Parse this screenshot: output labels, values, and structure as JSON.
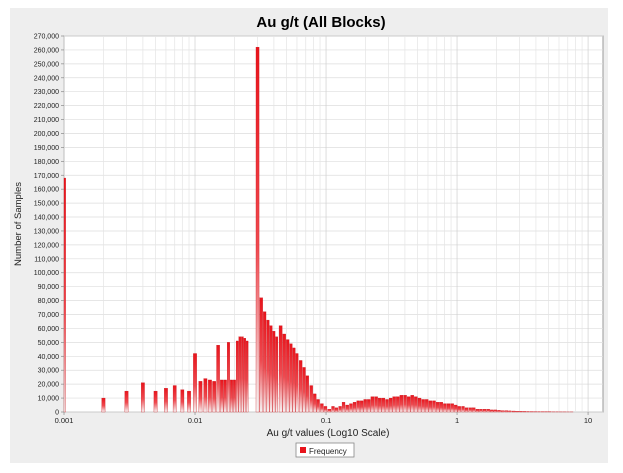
{
  "chart_data": {
    "type": "bar",
    "title": "Au g/t  (All Blocks)",
    "xlabel": "Au g/t values (Log10 Scale)",
    "ylabel": "Number of Samples",
    "x_scale": "log10",
    "xlim": [
      0.001,
      13
    ],
    "ylim": [
      0,
      270000
    ],
    "grid": true,
    "legend_position": "bottom-center",
    "x_ticks": [
      {
        "value": 0.001,
        "label": "0.001"
      },
      {
        "value": 0.01,
        "label": "0.01"
      },
      {
        "value": 0.1,
        "label": "0.1"
      },
      {
        "value": 1,
        "label": "1"
      },
      {
        "value": 10,
        "label": "10"
      }
    ],
    "y_ticks": [
      {
        "value": 0,
        "label": "0"
      },
      {
        "value": 10000,
        "label": "10,000"
      },
      {
        "value": 20000,
        "label": "20,000"
      },
      {
        "value": 30000,
        "label": "30,000"
      },
      {
        "value": 40000,
        "label": "40,000"
      },
      {
        "value": 50000,
        "label": "50,000"
      },
      {
        "value": 60000,
        "label": "60,000"
      },
      {
        "value": 70000,
        "label": "70,000"
      },
      {
        "value": 80000,
        "label": "80,000"
      },
      {
        "value": 90000,
        "label": "90,000"
      },
      {
        "value": 100000,
        "label": "100,000"
      },
      {
        "value": 110000,
        "label": "110,000"
      },
      {
        "value": 120000,
        "label": "120,000"
      },
      {
        "value": 130000,
        "label": "130,000"
      },
      {
        "value": 140000,
        "label": "140,000"
      },
      {
        "value": 150000,
        "label": "150,000"
      },
      {
        "value": 160000,
        "label": "160,000"
      },
      {
        "value": 170000,
        "label": "170,000"
      },
      {
        "value": 180000,
        "label": "180,000"
      },
      {
        "value": 190000,
        "label": "190,000"
      },
      {
        "value": 200000,
        "label": "200,000"
      },
      {
        "value": 210000,
        "label": "210,000"
      },
      {
        "value": 220000,
        "label": "220,000"
      },
      {
        "value": 230000,
        "label": "230,000"
      },
      {
        "value": 240000,
        "label": "240,000"
      },
      {
        "value": 250000,
        "label": "250,000"
      },
      {
        "value": 260000,
        "label": "260,000"
      },
      {
        "value": 270000,
        "label": "270,000"
      }
    ],
    "series": [
      {
        "name": "Frequency",
        "color": "#e8141c",
        "points": [
          [
            0.001,
            168000
          ],
          [
            0.002,
            10000
          ],
          [
            0.003,
            15000
          ],
          [
            0.004,
            21000
          ],
          [
            0.005,
            15000
          ],
          [
            0.006,
            17000
          ],
          [
            0.007,
            19000
          ],
          [
            0.008,
            16000
          ],
          [
            0.009,
            15000
          ],
          [
            0.01,
            42000
          ],
          [
            0.011,
            22000
          ],
          [
            0.012,
            24000
          ],
          [
            0.013,
            23000
          ],
          [
            0.014,
            22000
          ],
          [
            0.015,
            48000
          ],
          [
            0.016,
            23000
          ],
          [
            0.017,
            23000
          ],
          [
            0.018,
            50000
          ],
          [
            0.019,
            23000
          ],
          [
            0.02,
            23000
          ],
          [
            0.021,
            51000
          ],
          [
            0.022,
            54000
          ],
          [
            0.023,
            54000
          ],
          [
            0.024,
            53000
          ],
          [
            0.025,
            51000
          ],
          [
            0.03,
            262000
          ],
          [
            0.032,
            82000
          ],
          [
            0.034,
            72000
          ],
          [
            0.036,
            66000
          ],
          [
            0.038,
            62000
          ],
          [
            0.04,
            58000
          ],
          [
            0.042,
            54000
          ],
          [
            0.045,
            62000
          ],
          [
            0.048,
            56000
          ],
          [
            0.051,
            52000
          ],
          [
            0.054,
            49000
          ],
          [
            0.057,
            46000
          ],
          [
            0.06,
            42000
          ],
          [
            0.064,
            37000
          ],
          [
            0.068,
            32000
          ],
          [
            0.072,
            26000
          ],
          [
            0.077,
            19000
          ],
          [
            0.082,
            13000
          ],
          [
            0.087,
            9000
          ],
          [
            0.093,
            6000
          ],
          [
            0.099,
            4000
          ],
          [
            0.106,
            2000
          ],
          [
            0.113,
            4000
          ],
          [
            0.12,
            3000
          ],
          [
            0.128,
            4000
          ],
          [
            0.136,
            7000
          ],
          [
            0.145,
            5000
          ],
          [
            0.155,
            6000
          ],
          [
            0.165,
            7000
          ],
          [
            0.176,
            8000
          ],
          [
            0.187,
            8000
          ],
          [
            0.199,
            9000
          ],
          [
            0.212,
            9000
          ],
          [
            0.226,
            11000
          ],
          [
            0.241,
            11000
          ],
          [
            0.257,
            10000
          ],
          [
            0.274,
            10000
          ],
          [
            0.292,
            9000
          ],
          [
            0.311,
            10000
          ],
          [
            0.331,
            11000
          ],
          [
            0.353,
            11000
          ],
          [
            0.376,
            12000
          ],
          [
            0.401,
            12000
          ],
          [
            0.427,
            11000
          ],
          [
            0.455,
            12000
          ],
          [
            0.485,
            11000
          ],
          [
            0.517,
            10000
          ],
          [
            0.551,
            9000
          ],
          [
            0.587,
            9000
          ],
          [
            0.626,
            8000
          ],
          [
            0.667,
            8000
          ],
          [
            0.711,
            7000
          ],
          [
            0.758,
            7000
          ],
          [
            0.808,
            6000
          ],
          [
            0.861,
            6000
          ],
          [
            0.918,
            6000
          ],
          [
            0.978,
            5000
          ],
          [
            1.04,
            4000
          ],
          [
            1.11,
            4000
          ],
          [
            1.18,
            3000
          ],
          [
            1.26,
            3000
          ],
          [
            1.34,
            3000
          ],
          [
            1.43,
            2000
          ],
          [
            1.52,
            2000
          ],
          [
            1.62,
            2000
          ],
          [
            1.73,
            2000
          ],
          [
            1.84,
            1500
          ],
          [
            1.96,
            1500
          ],
          [
            2.09,
            1200
          ],
          [
            2.23,
            1000
          ],
          [
            2.38,
            1000
          ],
          [
            2.53,
            800
          ],
          [
            2.7,
            700
          ],
          [
            2.88,
            600
          ],
          [
            3.07,
            500
          ],
          [
            3.27,
            400
          ],
          [
            3.48,
            350
          ],
          [
            3.71,
            300
          ],
          [
            3.96,
            250
          ],
          [
            4.22,
            200
          ],
          [
            4.5,
            200
          ],
          [
            4.79,
            150
          ],
          [
            5.1,
            150
          ],
          [
            5.44,
            100
          ],
          [
            5.8,
            100
          ],
          [
            6.18,
            80
          ],
          [
            6.59,
            80
          ],
          [
            7.02,
            60
          ],
          [
            7.48,
            60
          ]
        ]
      }
    ]
  }
}
